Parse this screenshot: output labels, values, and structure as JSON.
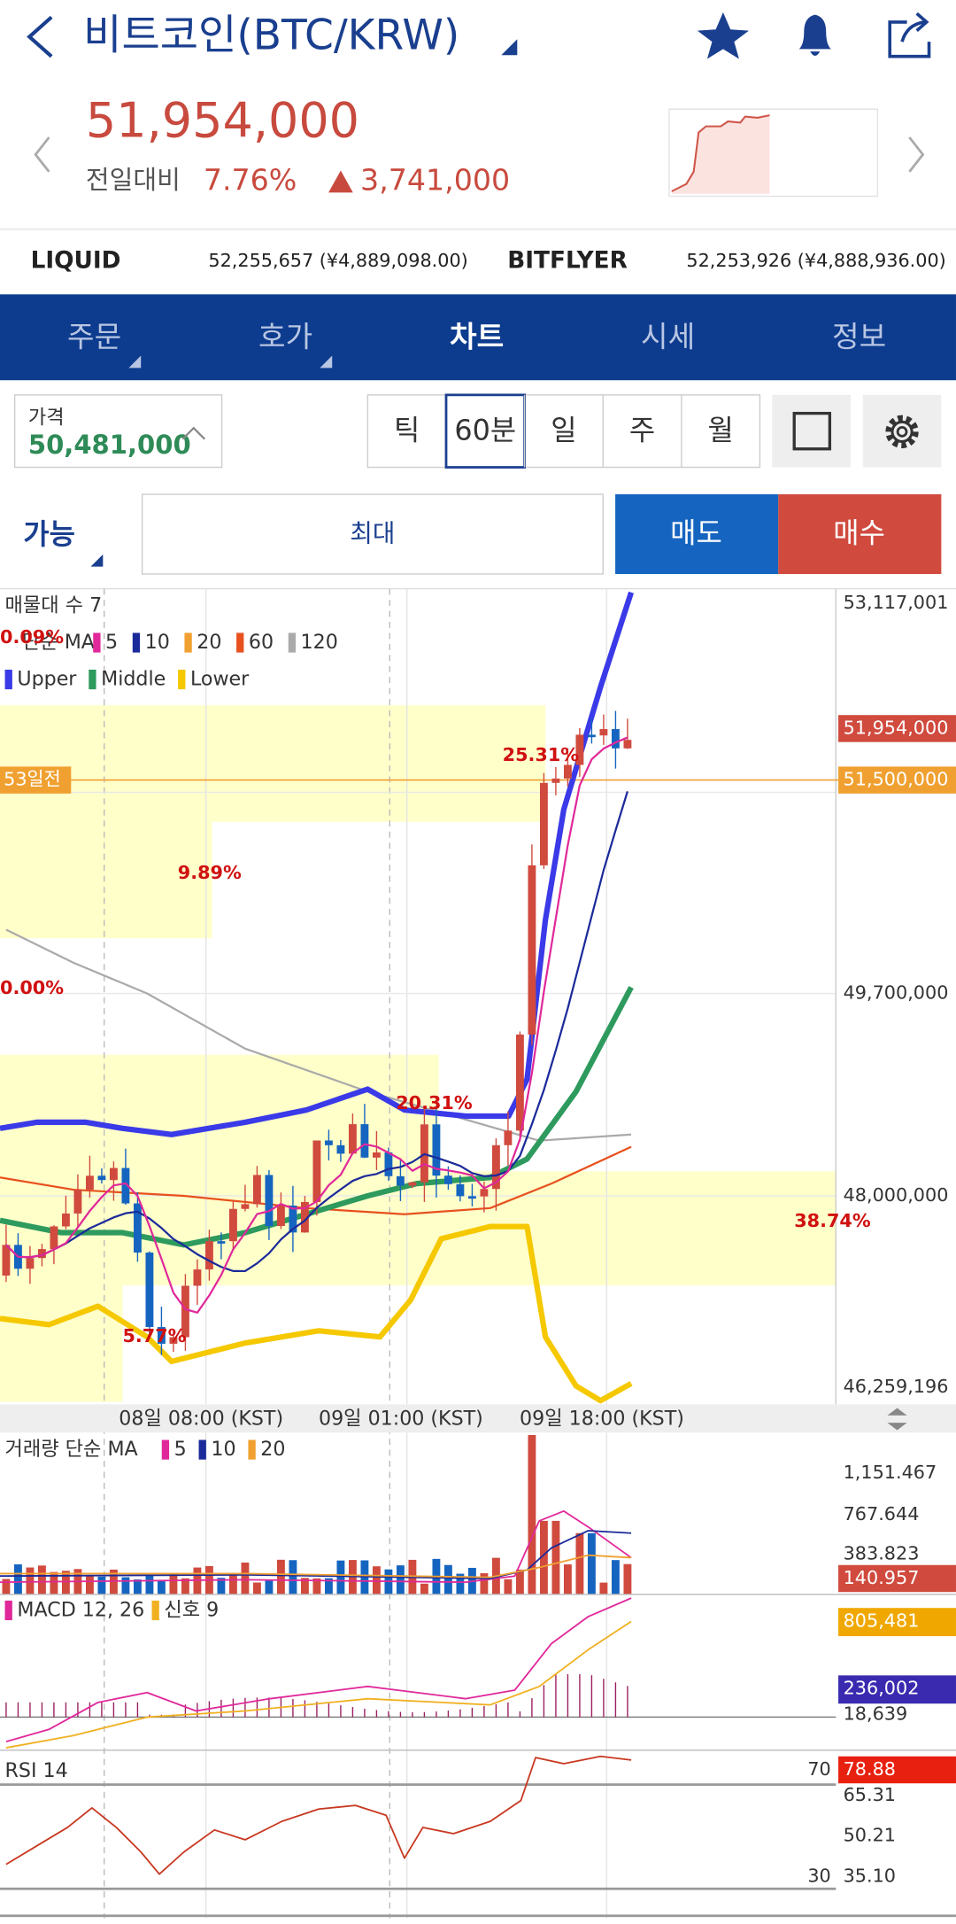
{
  "header": {
    "title": "비트코인(BTC/KRW)"
  },
  "price": {
    "current": "51,954,000",
    "change_label": "전일대비",
    "change_pct": "7.76%",
    "change_amount": "3,741,000"
  },
  "exchanges": [
    {
      "name": "LIQUID",
      "price": "52,255,657 (¥4,889,098.00)"
    },
    {
      "name": "BITFLYER",
      "price": "52,253,926 (¥4,888,936.00)"
    }
  ],
  "tabs": [
    "주문",
    "호가",
    "차트",
    "시세",
    "정보"
  ],
  "price_box": {
    "label": "가격",
    "value": "50,481,000"
  },
  "intervals": [
    "틱",
    "60분",
    "일",
    "주",
    "월"
  ],
  "order": {
    "available": "가능",
    "quantity": "최대",
    "sell": "매도",
    "buy": "매수"
  },
  "chart": {
    "legend_profile": "매물대 수 7",
    "ma_label": "단순 MA",
    "ma_periods": [
      "5",
      "10",
      "20",
      "60",
      "120"
    ],
    "bands": [
      "Upper",
      "Middle",
      "Lower"
    ],
    "profile_pcts": [
      "0.09%",
      "25.31%",
      "9.89%",
      "0.00%",
      "20.31%",
      "38.74%",
      "5.77%"
    ],
    "price_axis": [
      "53,117,001",
      "49,700,000",
      "48,000,000",
      "46,259,196"
    ],
    "current_price_tag": "51,954,000",
    "marker_label": "53일전",
    "marker_price": "51,500,000",
    "time_axis": [
      "08일 08:00 (KST)",
      "09일 01:00 (KST)",
      "09일 18:00 (KST)"
    ]
  },
  "volume": {
    "label": "거래량 단순 MA",
    "ma_periods": [
      "5",
      "10",
      "20"
    ],
    "axis": [
      "1,151.467",
      "767.644",
      "383.823"
    ],
    "tag": "140.957"
  },
  "macd": {
    "label": "MACD 12, 26",
    "signal": "신호 9",
    "axis": [
      "18,639"
    ],
    "tags": [
      "805,481",
      "236,002"
    ]
  },
  "rsi": {
    "label": "RSI 14",
    "levels": [
      "70",
      "30"
    ],
    "axis": [
      "65.31",
      "50.21",
      "35.10"
    ],
    "tag": "78.88"
  }
}
